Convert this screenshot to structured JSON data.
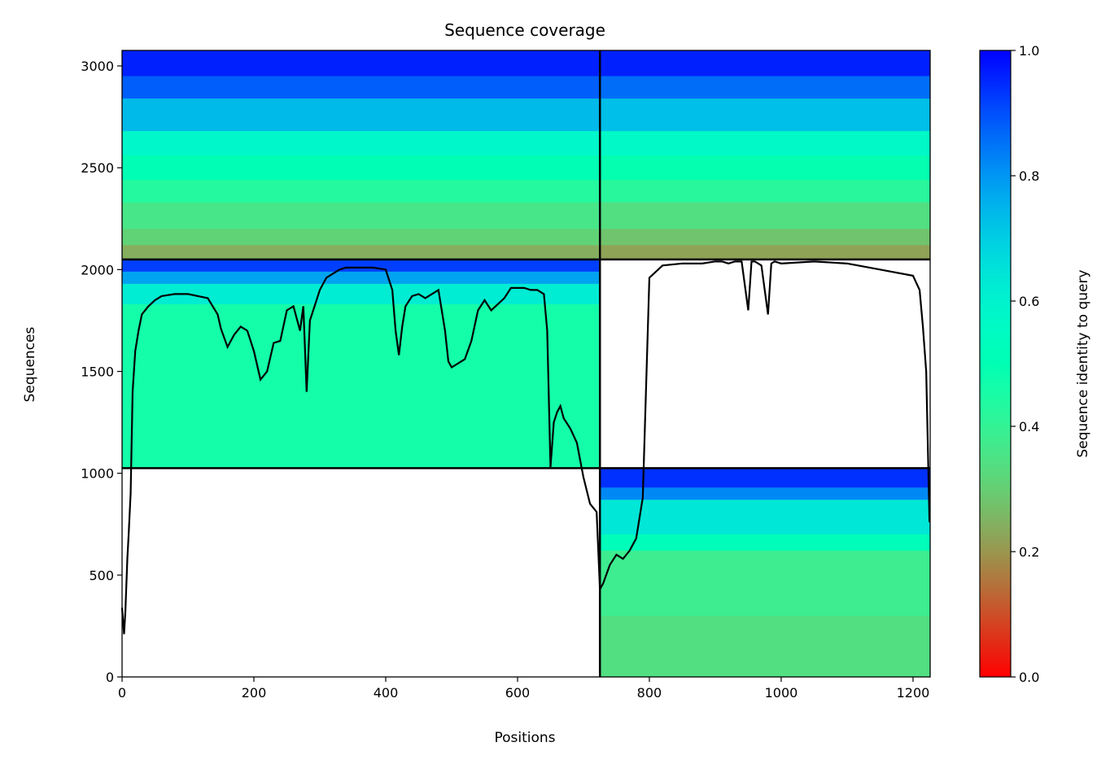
{
  "chart_data": {
    "type": "heatmap",
    "title": "Sequence coverage",
    "xlabel": "Positions",
    "ylabel": "Sequences",
    "colorbar_label": "Sequence identity to query",
    "colormap": "rainbow_r",
    "xlim": [
      0,
      1226
    ],
    "ylim": [
      0,
      3076
    ],
    "xticks": [
      0,
      200,
      400,
      600,
      800,
      1000,
      1200
    ],
    "yticks": [
      0,
      500,
      1000,
      1500,
      2000,
      2500,
      3000
    ],
    "colorbar_ticks": [
      "0.0",
      "0.2",
      "0.4",
      "0.6",
      "0.8",
      "1.0"
    ],
    "colorbar_range": [
      0,
      1
    ],
    "separators": {
      "vertical_x": 725,
      "horizontal_y": [
        1025,
        2050
      ]
    },
    "blocks": [
      {
        "name": "paired",
        "x": [
          0,
          725
        ],
        "y": [
          2050,
          3076
        ],
        "bands": [
          {
            "y": [
              2950,
              3076
            ],
            "identity": 0.96
          },
          {
            "y": [
              2840,
              2950
            ],
            "identity": 0.88
          },
          {
            "y": [
              2680,
              2840
            ],
            "identity": 0.74
          },
          {
            "y": [
              2560,
              2680
            ],
            "identity": 0.58
          },
          {
            "y": [
              2440,
              2560
            ],
            "identity": 0.5
          },
          {
            "y": [
              2330,
              2440
            ],
            "identity": 0.43
          },
          {
            "y": [
              2200,
              2330
            ],
            "identity": 0.36
          },
          {
            "y": [
              2120,
              2200
            ],
            "identity": 0.31
          },
          {
            "y": [
              2050,
              2120
            ],
            "identity": 0.24
          }
        ]
      },
      {
        "name": "paired",
        "x": [
          725,
          1226
        ],
        "y": [
          2050,
          3076
        ],
        "bands": [
          {
            "y": [
              2950,
              3076
            ],
            "identity": 0.96
          },
          {
            "y": [
              2840,
              2950
            ],
            "identity": 0.86
          },
          {
            "y": [
              2680,
              2840
            ],
            "identity": 0.73
          },
          {
            "y": [
              2560,
              2680
            ],
            "identity": 0.57
          },
          {
            "y": [
              2440,
              2560
            ],
            "identity": 0.49
          },
          {
            "y": [
              2330,
              2440
            ],
            "identity": 0.42
          },
          {
            "y": [
              2200,
              2330
            ],
            "identity": 0.34
          },
          {
            "y": [
              2120,
              2200
            ],
            "identity": 0.28
          },
          {
            "y": [
              2050,
              2120
            ],
            "identity": 0.22
          }
        ]
      },
      {
        "name": "unpaired",
        "x": [
          0,
          725
        ],
        "y": [
          1025,
          2050
        ],
        "bands": [
          {
            "y": [
              1990,
              2050
            ],
            "identity": 0.92
          },
          {
            "y": [
              1930,
              1990
            ],
            "identity": 0.78
          },
          {
            "y": [
              1830,
              1930
            ],
            "identity": 0.62
          },
          {
            "y": [
              1025,
              1830
            ],
            "identity": 0.46
          }
        ]
      },
      {
        "name": "unpaired",
        "x": [
          725,
          1226
        ],
        "y": [
          0,
          1025
        ],
        "bands": [
          {
            "y": [
              930,
              1025
            ],
            "identity": 0.94
          },
          {
            "y": [
              870,
              930
            ],
            "identity": 0.82
          },
          {
            "y": [
              700,
              870
            ],
            "identity": 0.64
          },
          {
            "y": [
              620,
              700
            ],
            "identity": 0.52
          },
          {
            "y": [
              300,
              620
            ],
            "identity": 0.38
          },
          {
            "y": [
              0,
              300
            ],
            "identity": 0.34
          }
        ]
      }
    ],
    "coverage_line": {
      "x": [
        0,
        3,
        5,
        8,
        10,
        13,
        16,
        20,
        25,
        30,
        40,
        50,
        60,
        80,
        100,
        130,
        145,
        150,
        160,
        170,
        180,
        190,
        200,
        210,
        220,
        230,
        240,
        250,
        260,
        270,
        275,
        280,
        285,
        290,
        300,
        310,
        320,
        330,
        340,
        360,
        380,
        400,
        410,
        415,
        420,
        425,
        430,
        440,
        450,
        460,
        470,
        480,
        490,
        495,
        500,
        510,
        520,
        530,
        540,
        550,
        560,
        570,
        580,
        590,
        600,
        610,
        620,
        630,
        640,
        645,
        650,
        655,
        660,
        665,
        670,
        680,
        690,
        700,
        710,
        720,
        725,
        730,
        740,
        750,
        760,
        770,
        780,
        790,
        800,
        820,
        850,
        880,
        900,
        910,
        920,
        930,
        940,
        950,
        955,
        960,
        970,
        980,
        985,
        990,
        1000,
        1050,
        1100,
        1150,
        1200,
        1210,
        1215,
        1220,
        1225
      ],
      "y": [
        340,
        210,
        320,
        580,
        700,
        900,
        1400,
        1600,
        1700,
        1780,
        1820,
        1850,
        1870,
        1880,
        1880,
        1860,
        1780,
        1710,
        1620,
        1680,
        1720,
        1700,
        1600,
        1460,
        1500,
        1640,
        1650,
        1800,
        1820,
        1700,
        1820,
        1400,
        1750,
        1800,
        1900,
        1960,
        1980,
        2000,
        2010,
        2010,
        2010,
        2000,
        1900,
        1700,
        1580,
        1720,
        1820,
        1870,
        1880,
        1860,
        1880,
        1900,
        1700,
        1550,
        1520,
        1540,
        1560,
        1650,
        1800,
        1850,
        1800,
        1830,
        1860,
        1910,
        1910,
        1910,
        1900,
        1900,
        1880,
        1700,
        1030,
        1250,
        1300,
        1330,
        1270,
        1220,
        1150,
        980,
        850,
        810,
        430,
        460,
        550,
        600,
        580,
        620,
        680,
        880,
        1960,
        2020,
        2030,
        2030,
        2040,
        2040,
        2030,
        2040,
        2040,
        1800,
        2040,
        2040,
        2020,
        1780,
        2030,
        2040,
        2030,
        2040,
        2030,
        2000,
        1970,
        1900,
        1720,
        1500,
        760
      ]
    }
  }
}
